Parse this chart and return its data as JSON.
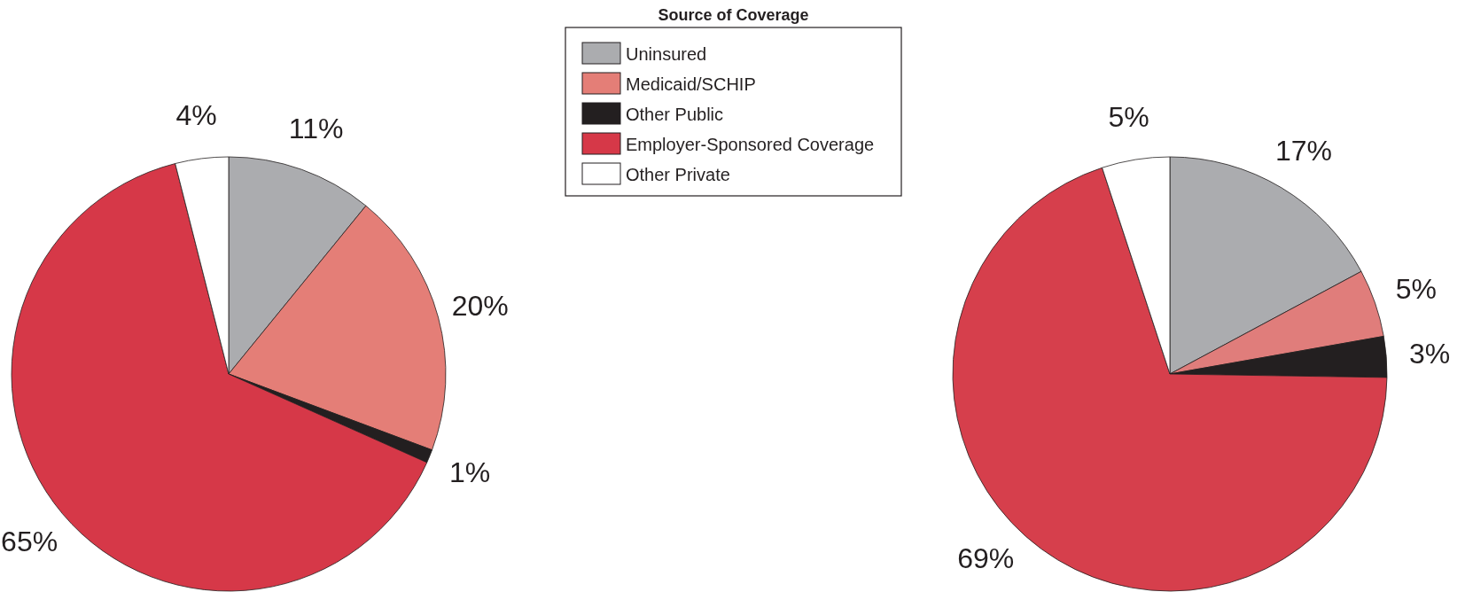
{
  "chart_data": [
    {
      "type": "pie",
      "legend_title": "Source of Coverage",
      "legend": "top right",
      "categories": [
        "Uninsured",
        "Medicaid/SCHIP",
        "Other Public",
        "Employer-Sponsored Coverage",
        "Other Private"
      ],
      "values": [
        11,
        20,
        1,
        65,
        4
      ],
      "value_labels": [
        "11%",
        "20%",
        "1%",
        "65%",
        "4%"
      ],
      "colors": [
        "#abacaf",
        "#e47e77",
        "#231f20",
        "#d63848",
        "#ffffff"
      ]
    },
    {
      "type": "pie",
      "categories": [
        null,
        null,
        null,
        null,
        null
      ],
      "values": [
        17,
        5,
        3,
        69,
        5
      ],
      "value_labels": [
        "17%",
        "5%",
        "3%",
        "69%",
        "5%"
      ],
      "colors": [
        "#abacaf",
        "#e07d7b",
        "#231f20",
        "#d63f4c",
        "#ffffff"
      ]
    }
  ]
}
